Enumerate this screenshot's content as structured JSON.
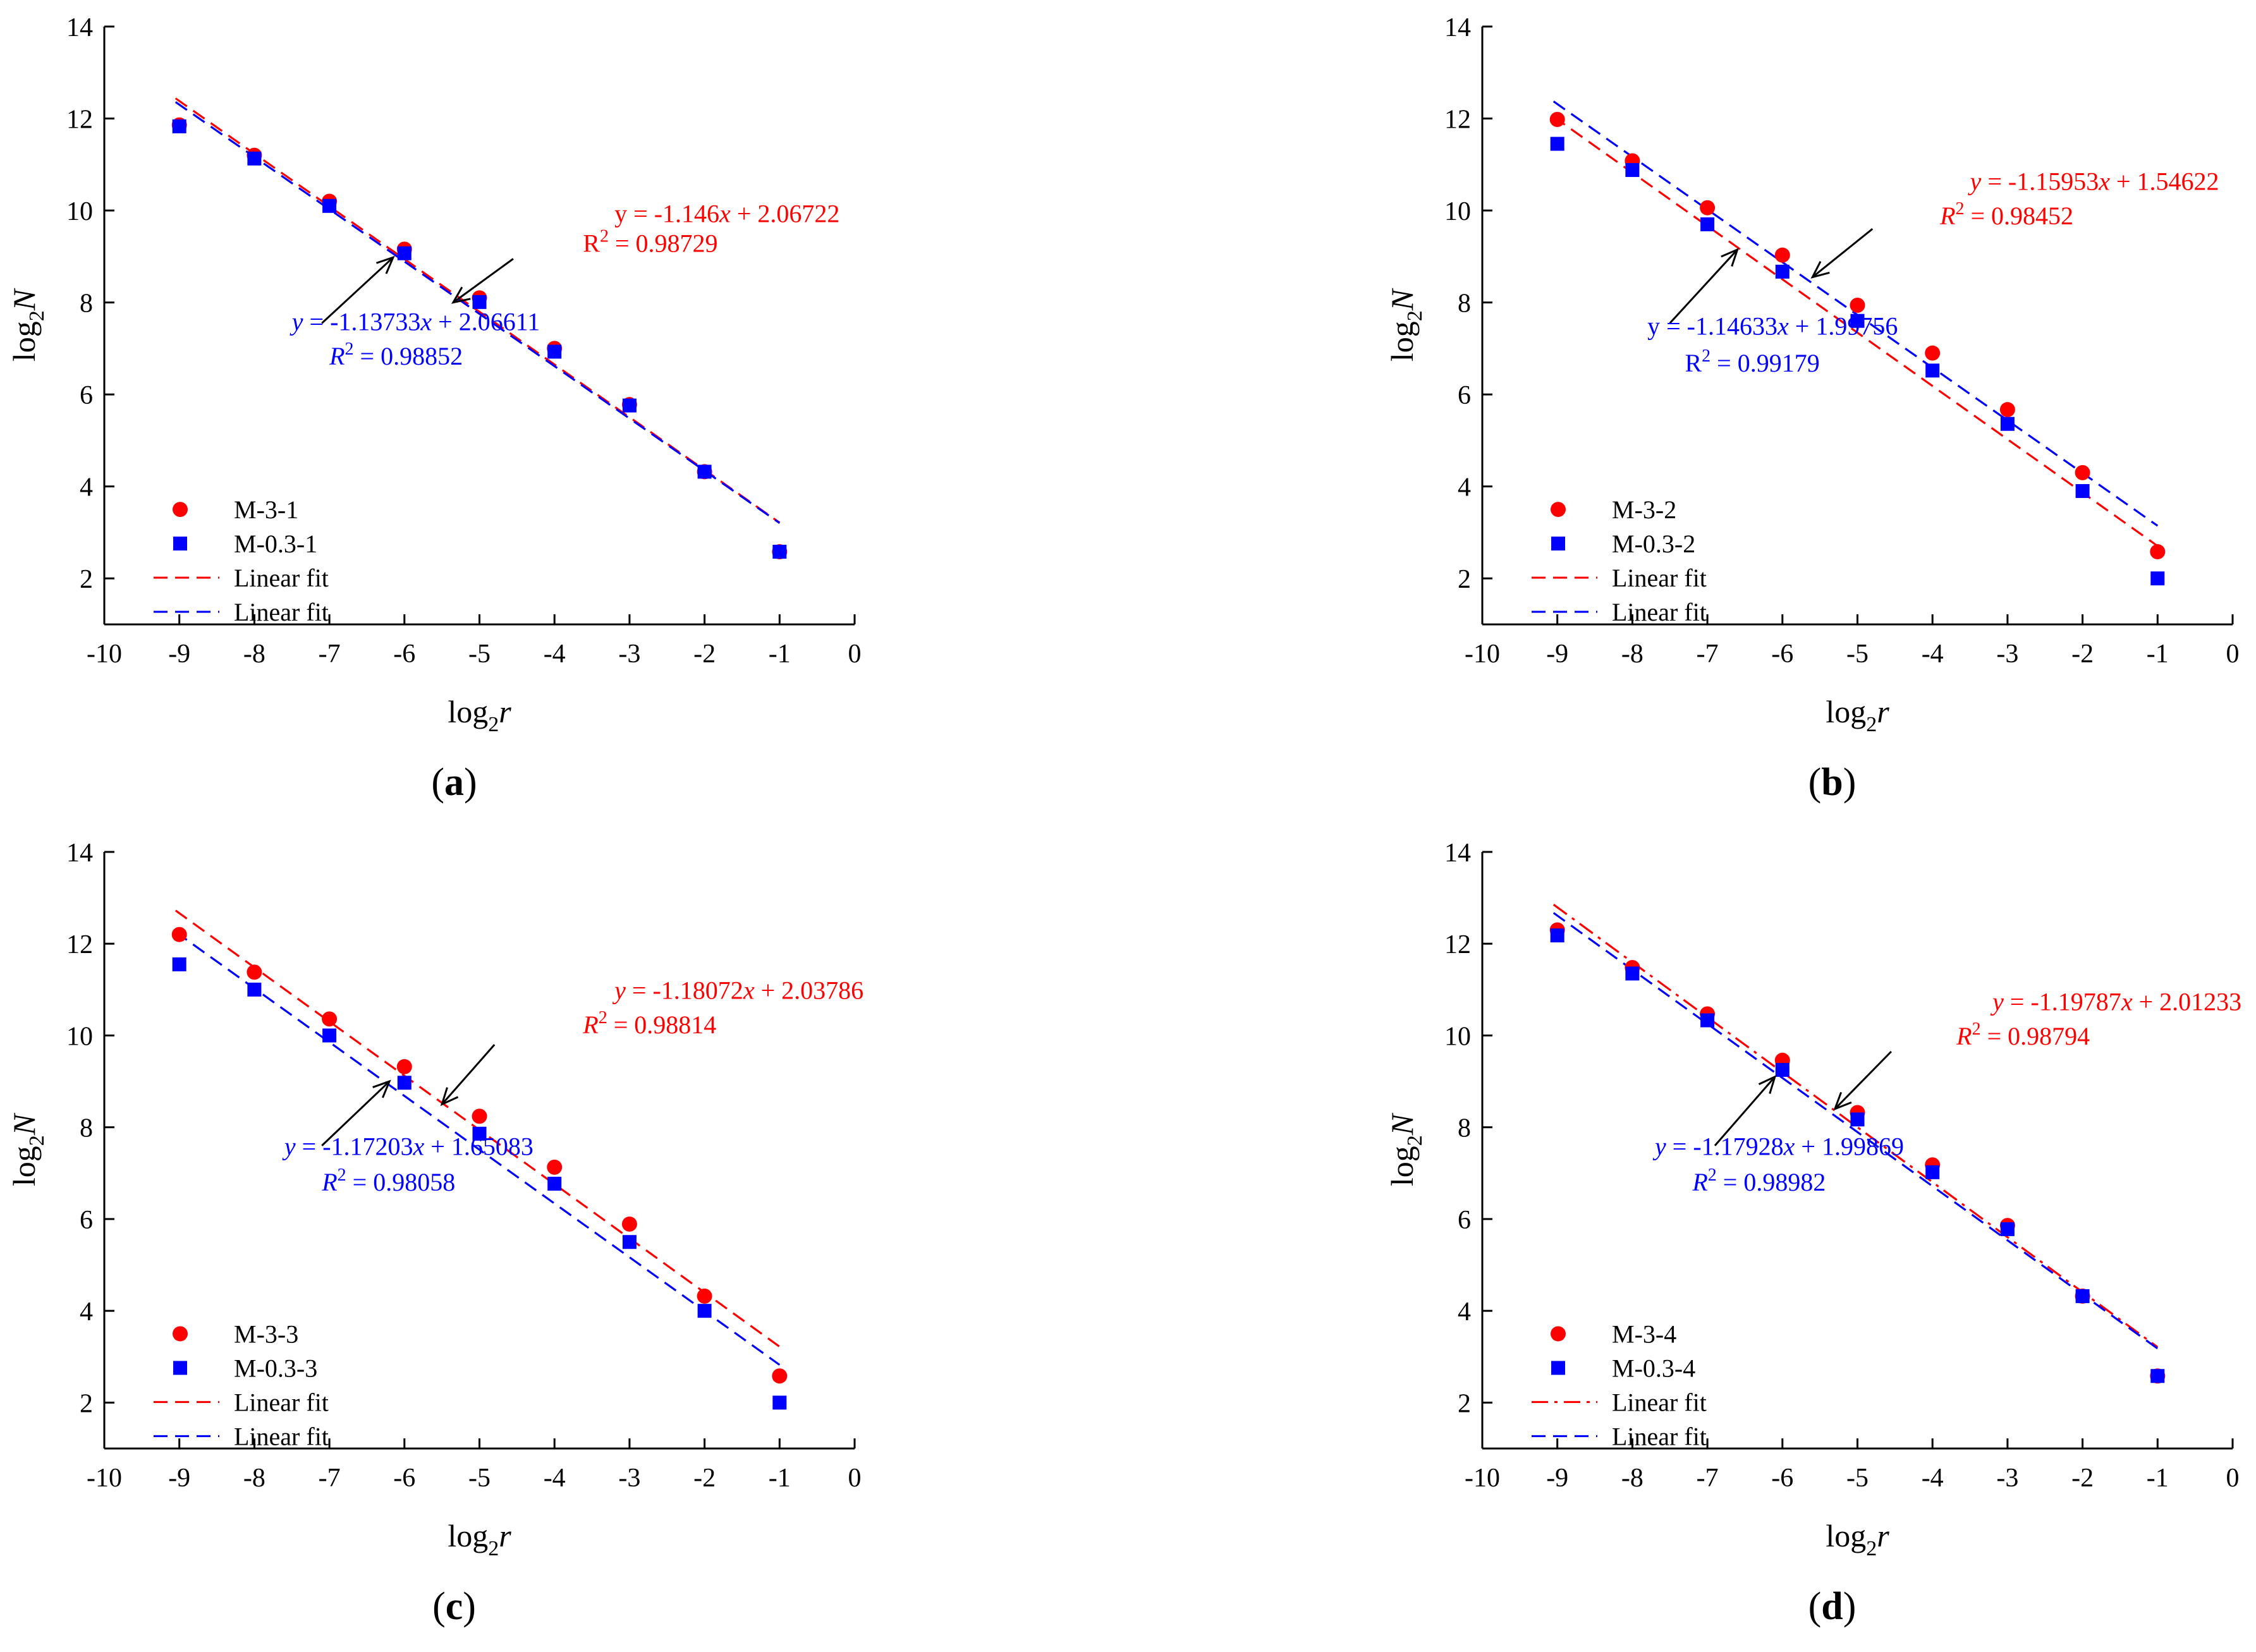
{
  "colors": {
    "red": "#ff0000",
    "blue": "#0000ff",
    "axis": "#000000"
  },
  "chart_data": [
    {
      "type": "scatter",
      "panel_label": {
        "open": "(",
        "letter": "a",
        "close": ")"
      },
      "xlabel": {
        "base": "log",
        "sub": "2",
        "var": "r"
      },
      "ylabel": {
        "base": "log",
        "sub": "2",
        "var": "N"
      },
      "xlim": [
        -10,
        0
      ],
      "ylim": [
        1,
        14
      ],
      "xticks": [
        -10,
        -9,
        -8,
        -7,
        -6,
        -5,
        -4,
        -3,
        -2,
        -1,
        0
      ],
      "xtick_labels": [
        "-10",
        "-9",
        "-8",
        "-7",
        "-6",
        "-5",
        "-4",
        "-3",
        "-2",
        "-1",
        "0"
      ],
      "yticks": [
        2,
        4,
        6,
        8,
        10,
        12,
        14
      ],
      "ytick_labels": [
        "2",
        "4",
        "6",
        "8",
        "10",
        "12",
        "14"
      ],
      "legend_position": "bottom-left",
      "series": [
        {
          "name": "M-3-1",
          "marker": "circle",
          "color": "#ff0000",
          "x": [
            -9,
            -8,
            -7,
            -6,
            -5,
            -4,
            -3,
            -2,
            -1
          ],
          "y": [
            11.86,
            11.2,
            10.2,
            9.16,
            8.1,
            7.0,
            5.78,
            4.32,
            2.58
          ]
        },
        {
          "name": "M-0.3-1",
          "marker": "square",
          "color": "#0000ff",
          "x": [
            -9,
            -8,
            -7,
            -6,
            -5,
            -4,
            -3,
            -2,
            -1
          ],
          "y": [
            11.83,
            11.13,
            10.1,
            9.07,
            8.01,
            6.93,
            5.76,
            4.32,
            2.58
          ]
        }
      ],
      "fits": [
        {
          "name": "Linear fit",
          "color": "#ff0000",
          "style": "dash",
          "slope": -1.146,
          "intercept": 2.06722,
          "x_range": [
            -9.05,
            -1
          ]
        },
        {
          "name": "Linear fit",
          "color": "#0000ff",
          "style": "dash",
          "slope": -1.13733,
          "intercept": 2.06611,
          "x_range": [
            -9.05,
            -1
          ]
        }
      ],
      "equations": [
        {
          "color": "#ff0000",
          "italic_vars": false,
          "y": "y",
          "eq1": " = -1.146",
          "x": "x",
          "eq2": " + 2.06722",
          "r_label": "R",
          "r_exp": "2",
          "r_value": " = 0.98729",
          "position": [
            -3.2,
            9.75
          ],
          "r_position": [
            -3.62,
            9.1
          ],
          "arrow_from": [
            -4.55,
            8.95
          ],
          "arrow_to": [
            -5.35,
            8.0
          ]
        },
        {
          "color": "#0000ff",
          "italic_vars": true,
          "y": "y",
          "eq1": " = -1.13733",
          "x": "x",
          "eq2": " + 2.06611",
          "r_label": "R",
          "r_exp": "2",
          "r_value": " = 0.98852",
          "position": [
            -7.5,
            7.4
          ],
          "r_position": [
            -7.0,
            6.65
          ],
          "arrow_from": [
            -7.1,
            7.55
          ],
          "arrow_to": [
            -6.15,
            8.98
          ]
        }
      ],
      "annotations": []
    },
    {
      "type": "scatter",
      "panel_label": {
        "open": "(",
        "letter": "b",
        "close": ")"
      },
      "xlabel": {
        "base": "log",
        "sub": "2",
        "var": "r"
      },
      "ylabel": {
        "base": "log",
        "sub": "2",
        "var": "N"
      },
      "xlim": [
        -10,
        0
      ],
      "ylim": [
        1,
        14
      ],
      "xticks": [
        -10,
        -9,
        -8,
        -7,
        -6,
        -5,
        -4,
        -3,
        -2,
        -1,
        0
      ],
      "xtick_labels": [
        "-10",
        "-9",
        "-8",
        "-7",
        "-6",
        "-5",
        "-4",
        "-3",
        "-2",
        "-1",
        "0"
      ],
      "yticks": [
        2,
        4,
        6,
        8,
        10,
        12,
        14
      ],
      "ytick_labels": [
        "2",
        "4",
        "6",
        "8",
        "10",
        "12",
        "14"
      ],
      "legend_position": "bottom-left",
      "series": [
        {
          "name": "M-3-2",
          "marker": "circle",
          "color": "#ff0000",
          "x": [
            -9,
            -8,
            -7,
            -6,
            -5,
            -4,
            -3,
            -2,
            -1
          ],
          "y": [
            11.98,
            11.08,
            10.06,
            9.03,
            7.94,
            6.9,
            5.67,
            4.3,
            2.58
          ]
        },
        {
          "name": "M-0.3-2",
          "marker": "square",
          "color": "#0000ff",
          "x": [
            -9,
            -8,
            -7,
            -6,
            -5,
            -4,
            -3,
            -2,
            -1
          ],
          "y": [
            11.45,
            10.88,
            9.7,
            8.67,
            7.6,
            6.52,
            5.36,
            3.9,
            2.0
          ]
        }
      ],
      "fits": [
        {
          "name": "Linear fit",
          "color": "#ff0000",
          "style": "dash",
          "slope": -1.15953,
          "intercept": 1.54622,
          "x_range": [
            -9.05,
            -1
          ]
        },
        {
          "name": "Linear fit",
          "color": "#0000ff",
          "style": "dash",
          "slope": -1.14633,
          "intercept": 1.99756,
          "x_range": [
            -9.05,
            -1
          ]
        }
      ],
      "equations": [
        {
          "color": "#ff0000",
          "italic_vars": true,
          "y": "y",
          "eq1": " = -1.15953",
          "x": "x",
          "eq2": " + 1.54622",
          "r_label": "R",
          "r_exp": "2",
          "r_value": " = 0.98452",
          "position": [
            -3.5,
            10.45
          ],
          "r_position": [
            -3.9,
            9.7
          ],
          "arrow_from": [
            -4.8,
            9.6
          ],
          "arrow_to": [
            -5.6,
            8.55
          ]
        },
        {
          "color": "#0000ff",
          "italic_vars": false,
          "y": "y",
          "eq1": " = -1.14633",
          "x": "x",
          "eq2": " + 1.99756",
          "r_label": "R",
          "r_exp": "2",
          "r_value": " = 0.99179",
          "position": [
            -7.8,
            7.3
          ],
          "r_position": [
            -7.3,
            6.5
          ],
          "arrow_from": [
            -7.5,
            7.55
          ],
          "arrow_to": [
            -6.6,
            9.15
          ]
        }
      ],
      "annotations": []
    },
    {
      "type": "scatter",
      "panel_label": {
        "open": "(",
        "letter": "c",
        "close": ")"
      },
      "xlabel": {
        "base": "log",
        "sub": "2",
        "var": "r"
      },
      "ylabel": {
        "base": "log",
        "sub": "2",
        "var": "N"
      },
      "xlim": [
        -10,
        0
      ],
      "ylim": [
        1,
        14
      ],
      "xticks": [
        -10,
        -9,
        -8,
        -7,
        -6,
        -5,
        -4,
        -3,
        -2,
        -1,
        0
      ],
      "xtick_labels": [
        "-10",
        "-9",
        "-8",
        "-7",
        "-6",
        "-5",
        "-4",
        "-3",
        "-2",
        "-1",
        "0"
      ],
      "yticks": [
        2,
        4,
        6,
        8,
        10,
        12,
        14
      ],
      "ytick_labels": [
        "2",
        "4",
        "6",
        "8",
        "10",
        "12",
        "14"
      ],
      "legend_position": "bottom-left",
      "series": [
        {
          "name": "M-3-3",
          "marker": "circle",
          "color": "#ff0000",
          "x": [
            -9,
            -8,
            -7,
            -6,
            -5,
            -4,
            -3,
            -2,
            -1
          ],
          "y": [
            12.2,
            11.38,
            10.36,
            9.32,
            8.24,
            7.13,
            5.89,
            4.32,
            2.58
          ]
        },
        {
          "name": "M-0.3-3",
          "marker": "square",
          "color": "#0000ff",
          "x": [
            -9,
            -8,
            -7,
            -6,
            -5,
            -4,
            -3,
            -2,
            -1
          ],
          "y": [
            11.55,
            11.0,
            10.0,
            8.97,
            7.86,
            6.77,
            5.5,
            4.0,
            2.0
          ]
        }
      ],
      "fits": [
        {
          "name": "Linear fit",
          "color": "#ff0000",
          "style": "dash",
          "slope": -1.18072,
          "intercept": 2.03786,
          "x_range": [
            -9.05,
            -1
          ]
        },
        {
          "name": "Linear fit",
          "color": "#0000ff",
          "style": "dash",
          "slope": -1.17203,
          "intercept": 1.65083,
          "x_range": [
            -9.05,
            -1
          ]
        }
      ],
      "equations": [
        {
          "color": "#ff0000",
          "italic_vars": true,
          "y": "y",
          "eq1": " = -1.18072",
          "x": "x",
          "eq2": " + 2.03786",
          "r_label": "R",
          "r_exp": "2",
          "r_value": " = 0.98814",
          "position": [
            -3.2,
            10.8
          ],
          "r_position": [
            -3.62,
            10.05
          ],
          "arrow_from": [
            -4.8,
            9.8
          ],
          "arrow_to": [
            -5.5,
            8.5
          ]
        },
        {
          "color": "#0000ff",
          "italic_vars": true,
          "y": "y",
          "eq1": " = -1.17203",
          "x": "x",
          "eq2": " + 1.65083",
          "r_label": "R",
          "r_exp": "2",
          "r_value": " = 0.98058",
          "position": [
            -7.6,
            7.4
          ],
          "r_position": [
            -7.1,
            6.62
          ],
          "arrow_from": [
            -7.1,
            7.6
          ],
          "arrow_to": [
            -6.2,
            9.0
          ]
        }
      ],
      "annotations": []
    },
    {
      "type": "scatter",
      "panel_label": {
        "open": "(",
        "letter": "d",
        "close": ")"
      },
      "xlabel": {
        "base": "log",
        "sub": "2",
        "var": "r"
      },
      "ylabel": {
        "base": "log",
        "sub": "2",
        "var": "N"
      },
      "xlim": [
        -10,
        0
      ],
      "ylim": [
        1,
        14
      ],
      "xticks": [
        -10,
        -9,
        -8,
        -7,
        -6,
        -5,
        -4,
        -3,
        -2,
        -1,
        0
      ],
      "xtick_labels": [
        "-10",
        "-9",
        "-8",
        "-7",
        "-6",
        "-5",
        "-4",
        "-3",
        "-2",
        "-1",
        "0"
      ],
      "yticks": [
        2,
        4,
        6,
        8,
        10,
        12,
        14
      ],
      "ytick_labels": [
        "2",
        "4",
        "6",
        "8",
        "10",
        "12",
        "14"
      ],
      "legend_position": "bottom-left",
      "series": [
        {
          "name": "M-3-4",
          "marker": "circle",
          "color": "#ff0000",
          "x": [
            -9,
            -8,
            -7,
            -6,
            -5,
            -4,
            -3,
            -2,
            -1
          ],
          "y": [
            12.3,
            11.48,
            10.47,
            9.46,
            8.32,
            7.18,
            5.86,
            4.32,
            2.58
          ]
        },
        {
          "name": "M-0.3-4",
          "marker": "square",
          "color": "#0000ff",
          "x": [
            -9,
            -8,
            -7,
            -6,
            -5,
            -4,
            -3,
            -2,
            -1
          ],
          "y": [
            12.18,
            11.35,
            10.33,
            9.25,
            8.17,
            7.02,
            5.78,
            4.32,
            2.58
          ]
        }
      ],
      "fits": [
        {
          "name": "Linear fit",
          "color": "#ff0000",
          "style": "dashdot",
          "slope": -1.19787,
          "intercept": 2.01233,
          "x_range": [
            -9.05,
            -1
          ]
        },
        {
          "name": "Linear fit",
          "color": "#0000ff",
          "style": "dash",
          "slope": -1.17928,
          "intercept": 1.99869,
          "x_range": [
            -9.05,
            -1
          ]
        }
      ],
      "equations": [
        {
          "color": "#ff0000",
          "italic_vars": true,
          "y": "y",
          "eq1": " = -1.19787",
          "x": "x",
          "eq2": " + 2.01233",
          "r_label": "R",
          "r_exp": "2",
          "r_value": " = 0.98794",
          "position": [
            -3.2,
            10.55
          ],
          "r_position": [
            -3.68,
            9.8
          ],
          "arrow_from": [
            -4.55,
            9.65
          ],
          "arrow_to": [
            -5.3,
            8.4
          ]
        },
        {
          "color": "#0000ff",
          "italic_vars": true,
          "y": "y",
          "eq1": " = -1.17928",
          "x": "x",
          "eq2": " + 1.99869",
          "r_label": "R",
          "r_exp": "2",
          "r_value": " = 0.98982",
          "position": [
            -7.7,
            7.4
          ],
          "r_position": [
            -7.2,
            6.62
          ],
          "arrow_from": [
            -6.9,
            7.6
          ],
          "arrow_to": [
            -6.1,
            9.1
          ]
        }
      ],
      "annotations": []
    }
  ]
}
